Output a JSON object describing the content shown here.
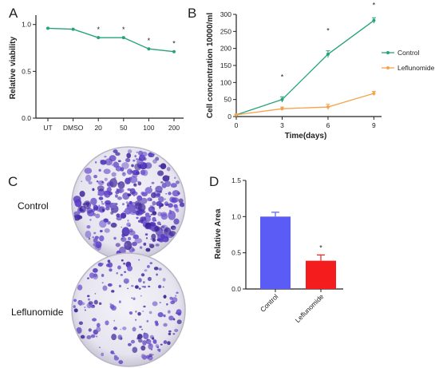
{
  "panels": {
    "A": "A",
    "B": "B",
    "C": "C",
    "D": "D"
  },
  "chart_data": [
    {
      "panel": "A",
      "type": "line",
      "categories": [
        "UT",
        "DMSO",
        "20",
        "50",
        "100",
        "200"
      ],
      "values": [
        0.96,
        0.95,
        0.86,
        0.86,
        0.74,
        0.71
      ],
      "significance": [
        "",
        "",
        "*",
        "*",
        "*",
        "*"
      ],
      "ylabel": "Relative viability",
      "xlabel": "",
      "ylim": [
        0.0,
        1.1
      ],
      "yticks": [
        "0.0",
        "0.5",
        "1.0"
      ],
      "color": "#26a37a"
    },
    {
      "panel": "B",
      "type": "line",
      "x": [
        0,
        3,
        6,
        9
      ],
      "xticks": [
        "0",
        "3",
        "6",
        "9"
      ],
      "yticks": [
        "0",
        "50",
        "100",
        "150",
        "200",
        "250",
        "300"
      ],
      "xlim": [
        0,
        9.5
      ],
      "ylim": [
        0,
        300
      ],
      "xlabel": "Time(days)",
      "ylabel": "Cell concentration 10000/ml",
      "series": [
        {
          "name": "Control",
          "values": [
            5,
            50,
            183,
            282
          ],
          "errors": [
            1,
            8,
            10,
            8
          ],
          "color": "#26a37a"
        },
        {
          "name": "Leflunomide",
          "values": [
            5,
            23,
            28,
            68
          ],
          "errors": [
            1,
            5,
            8,
            6
          ],
          "color": "#f5a34b"
        }
      ],
      "significance": [
        "",
        "*",
        "*",
        "*"
      ],
      "legend": "right"
    },
    {
      "panel": "D",
      "type": "bar",
      "categories": [
        "Control",
        "Leflunomide"
      ],
      "values": [
        1.0,
        0.39
      ],
      "errors": [
        0.06,
        0.08
      ],
      "colors": [
        "#5a5cf5",
        "#f41c1c"
      ],
      "significance": [
        "",
        "*"
      ],
      "ylabel": "Relative Area",
      "ylim": [
        0,
        1.5
      ],
      "yticks": [
        "0.0",
        "0.5",
        "1.0",
        "1.5"
      ]
    }
  ],
  "dishes": [
    {
      "label": "Control",
      "colony_density": "high"
    },
    {
      "label": "Leflunomide",
      "colony_density": "low"
    }
  ]
}
